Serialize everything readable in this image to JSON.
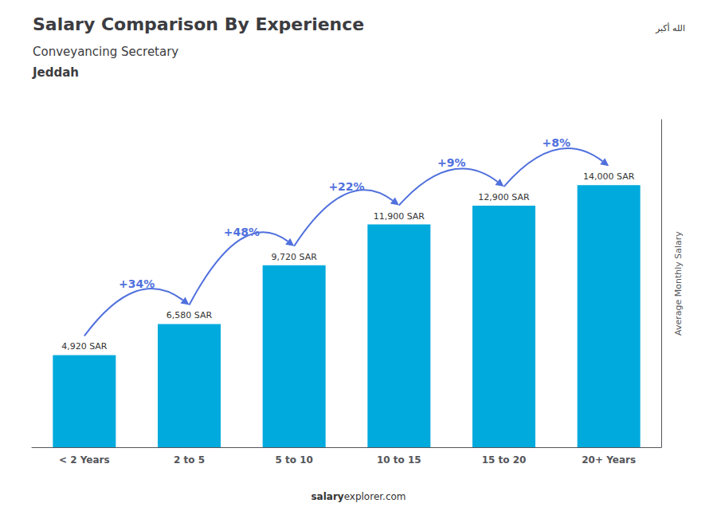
{
  "chart_data": {
    "type": "bar",
    "title": "Salary Comparison By Experience",
    "subtitle": "Conveyancing Secretary",
    "city": "Jeddah",
    "categories": [
      "< 2 Years",
      "2 to 5",
      "5 to 10",
      "10 to 15",
      "15 to 20",
      "20+ Years"
    ],
    "values": [
      4920,
      6580,
      9720,
      11900,
      12900,
      14000
    ],
    "value_labels": [
      "4,920 SAR",
      "6,580 SAR",
      "9,720 SAR",
      "11,900 SAR",
      "12,900 SAR",
      "14,000 SAR"
    ],
    "data_labels": true,
    "change_labels": [
      "+34%",
      "+48%",
      "+22%",
      "+9%",
      "+8%"
    ],
    "color": "#00aadd",
    "ylabel": "Average Monthly Salary",
    "ylim": [
      0,
      17500
    ],
    "grid": false,
    "tick_labels": "x",
    "footer": [
      "salary",
      "explorer.com"
    ],
    "flag_text": "الله أكبر"
  }
}
